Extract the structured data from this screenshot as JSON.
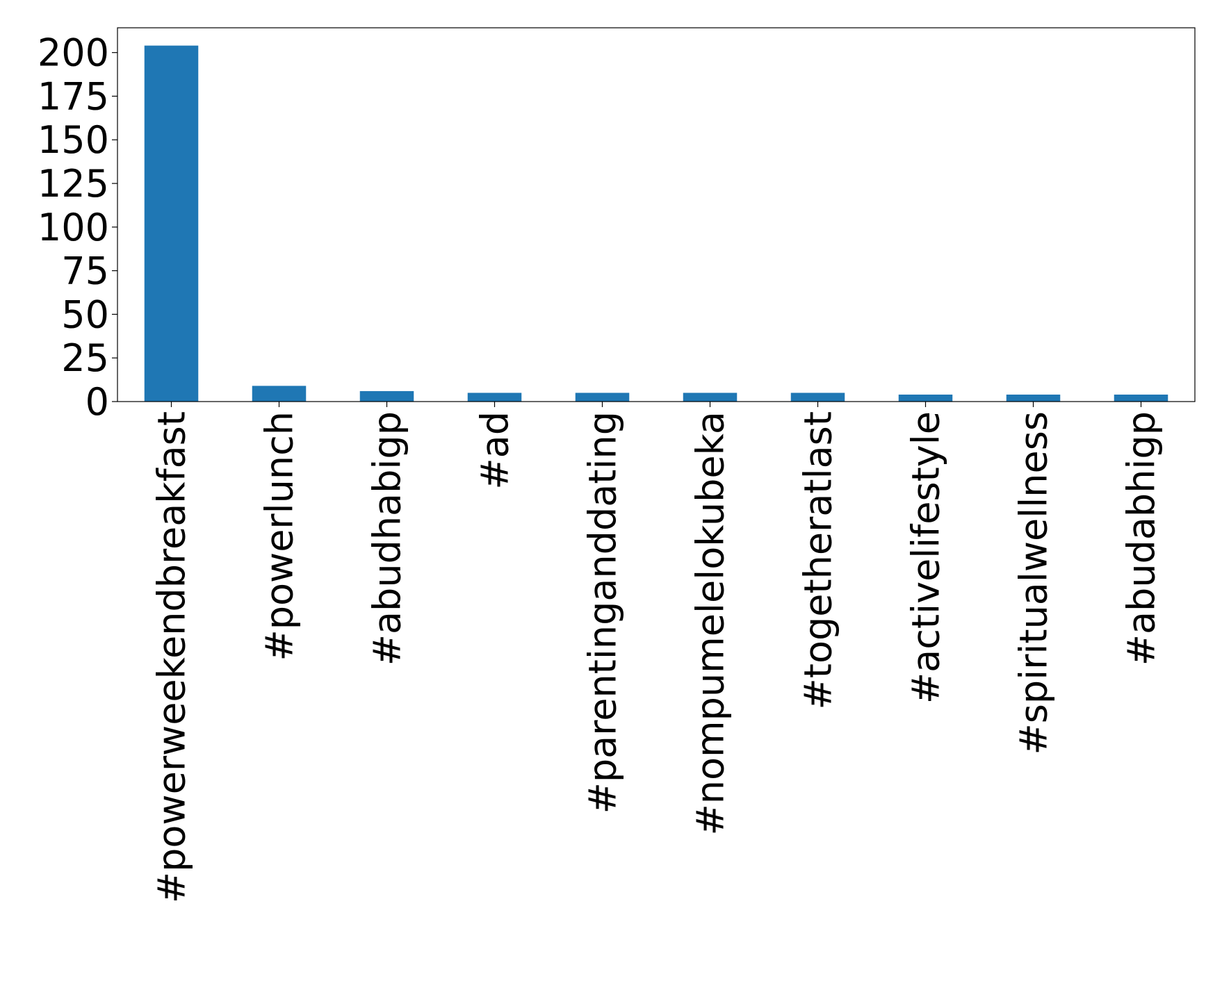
{
  "chart_data": {
    "type": "bar",
    "categories": [
      "#powerweekendbreakfast",
      "#powerlunch",
      "#abudhabigp",
      "#ad",
      "#parentinganddating",
      "#nompumelelokubeka",
      "#togetheratlast",
      "#activelifestyle",
      "#spiritualwellness",
      "#abudabhigp"
    ],
    "values": [
      204,
      9,
      6,
      5,
      5,
      5,
      5,
      4,
      4,
      4
    ],
    "color": "#1f77b4",
    "ylim": [
      0,
      214.2
    ],
    "yticks": [
      0,
      25,
      50,
      75,
      100,
      125,
      150,
      175,
      200
    ],
    "grid": false
  }
}
